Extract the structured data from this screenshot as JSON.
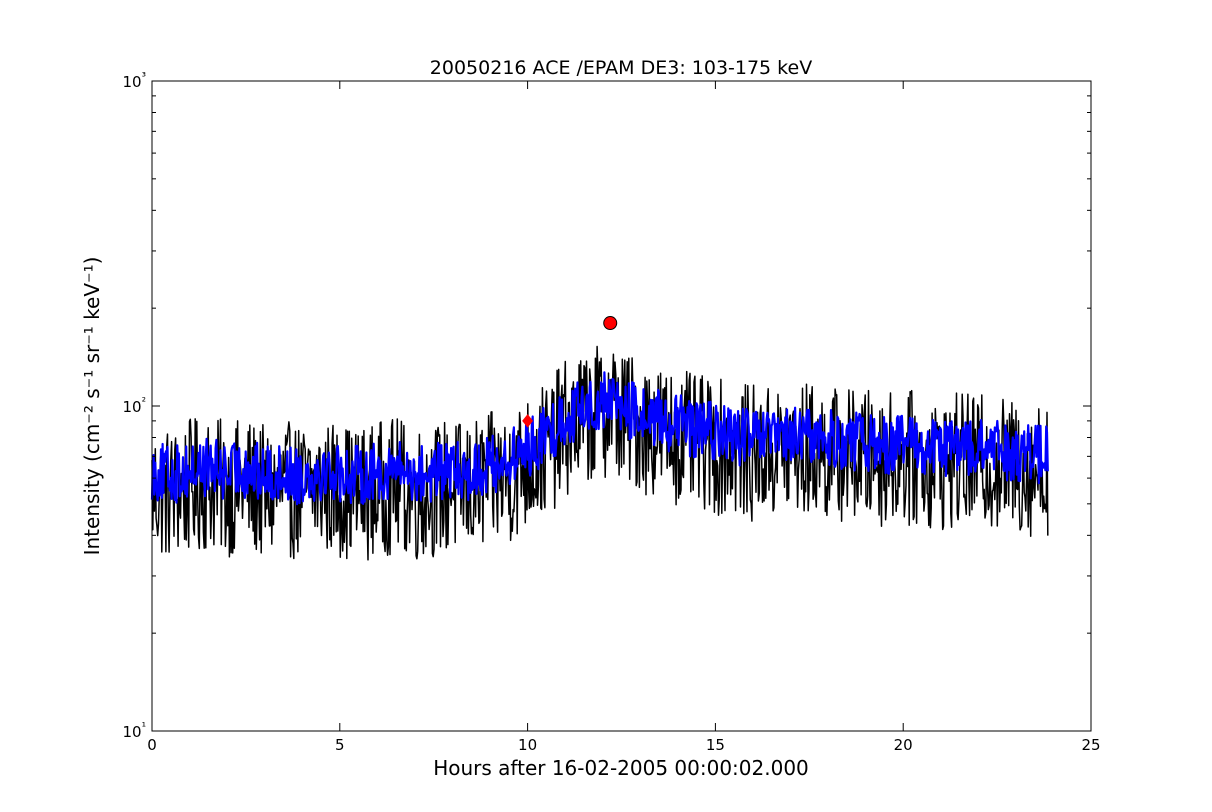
{
  "chart_data": {
    "type": "line",
    "title": "20050216 ACE /EPAM DE3: 103-175 keV",
    "xlabel": "Hours after 16-02-2005 00:00:02.000",
    "ylabel": "Intensity (cm⁻² s⁻¹ sr⁻¹ keV⁻¹)",
    "xlim": [
      0,
      25
    ],
    "ylim": [
      10,
      1000
    ],
    "yscale": "log",
    "grid": false,
    "x_ticks": [
      0,
      5,
      10,
      15,
      20,
      25
    ],
    "x_tick_labels": [
      "0",
      "5",
      "10",
      "15",
      "20",
      "25"
    ],
    "y_ticks": [
      10,
      100,
      1000
    ],
    "y_tick_labels": [
      "10¹",
      "10²",
      "10³"
    ],
    "series": [
      {
        "color": "#000000",
        "style": "raw",
        "x": [
          0,
          0.5,
          1,
          1.5,
          2,
          2.5,
          3,
          3.5,
          4,
          4.5,
          5,
          5.5,
          6,
          6.5,
          7,
          7.5,
          8,
          8.5,
          9,
          9.5,
          10,
          10.5,
          11,
          11.5,
          12,
          12.2,
          12.5,
          13,
          13.5,
          14,
          14.5,
          15,
          15.5,
          16,
          16.5,
          17,
          17.5,
          18,
          18.5,
          19,
          19.5,
          20,
          20.5,
          21,
          21.5,
          22,
          22.5,
          23,
          23.5,
          23.85
        ],
        "y": [
          62,
          60,
          63,
          65,
          62,
          64,
          60,
          62,
          61,
          63,
          62,
          60,
          62,
          64,
          60,
          62,
          63,
          62,
          66,
          68,
          75,
          82,
          95,
          102,
          108,
          112,
          103,
          98,
          94,
          90,
          86,
          84,
          82,
          80,
          80,
          81,
          82,
          80,
          79,
          78,
          77,
          78,
          76,
          75,
          76,
          75,
          74,
          73,
          72,
          72
        ],
        "spread_low": 0.55,
        "spread_high": 1.45
      },
      {
        "color": "#0000ff",
        "style": "smoothed",
        "x": [
          0,
          0.5,
          1,
          1.5,
          2,
          2.5,
          3,
          3.5,
          4,
          4.5,
          5,
          5.5,
          6,
          6.5,
          7,
          7.5,
          8,
          8.5,
          9,
          9.5,
          10,
          10.5,
          11,
          11.5,
          12,
          12.2,
          12.5,
          13,
          13.5,
          14,
          14.5,
          15,
          15.5,
          16,
          16.5,
          17,
          17.5,
          18,
          18.5,
          19,
          19.5,
          20,
          20.5,
          21,
          21.5,
          22,
          22.5,
          23,
          23.5,
          23.85
        ],
        "y": [
          64,
          62,
          64,
          66,
          63,
          65,
          62,
          63,
          62,
          64,
          63,
          62,
          63,
          65,
          62,
          63,
          64,
          63,
          67,
          69,
          75,
          82,
          93,
          100,
          104,
          108,
          100,
          95,
          92,
          89,
          86,
          84,
          82,
          81,
          80,
          81,
          82,
          80,
          79,
          78,
          77,
          78,
          76,
          75,
          76,
          75,
          74,
          73,
          72,
          72
        ],
        "spread_low": 0.8,
        "spread_high": 1.22
      }
    ],
    "markers": [
      {
        "x": 10.0,
        "y": 90,
        "shape": "diamond",
        "color": "#ff0000"
      },
      {
        "x": 12.2,
        "y": 180,
        "shape": "circle",
        "color": "#ff0000"
      }
    ]
  }
}
